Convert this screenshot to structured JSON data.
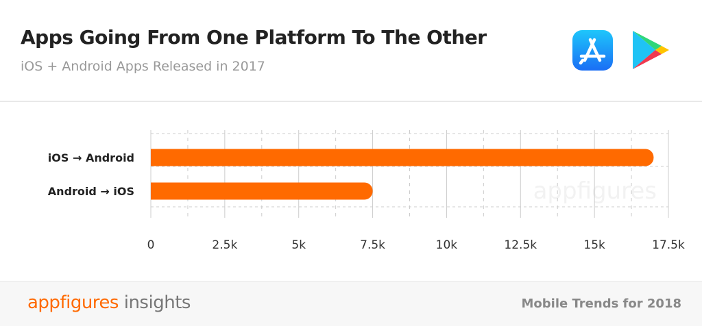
{
  "header": {
    "title": "Apps Going From One Platform To The Other",
    "subtitle": "iOS + Android Apps Released in 2017",
    "icons": [
      "app-store-icon",
      "google-play-icon"
    ]
  },
  "chart_data": {
    "type": "bar",
    "orientation": "horizontal",
    "categories": [
      "iOS → Android",
      "Android → iOS"
    ],
    "values": [
      17000,
      7500
    ],
    "xlim": [
      0,
      17500
    ],
    "xticks": [
      0,
      2500,
      5000,
      7500,
      10000,
      12500,
      15000,
      17500
    ],
    "xtick_labels": [
      "0",
      "2.5k",
      "5k",
      "7.5k",
      "10k",
      "12.5k",
      "15k",
      "17.5k"
    ],
    "grid": true,
    "bar_color": "#ff6a00",
    "watermark": "appfigures"
  },
  "footer": {
    "brand_a": "appfigures",
    "brand_b": " insights",
    "note": "Mobile Trends for 2018"
  }
}
